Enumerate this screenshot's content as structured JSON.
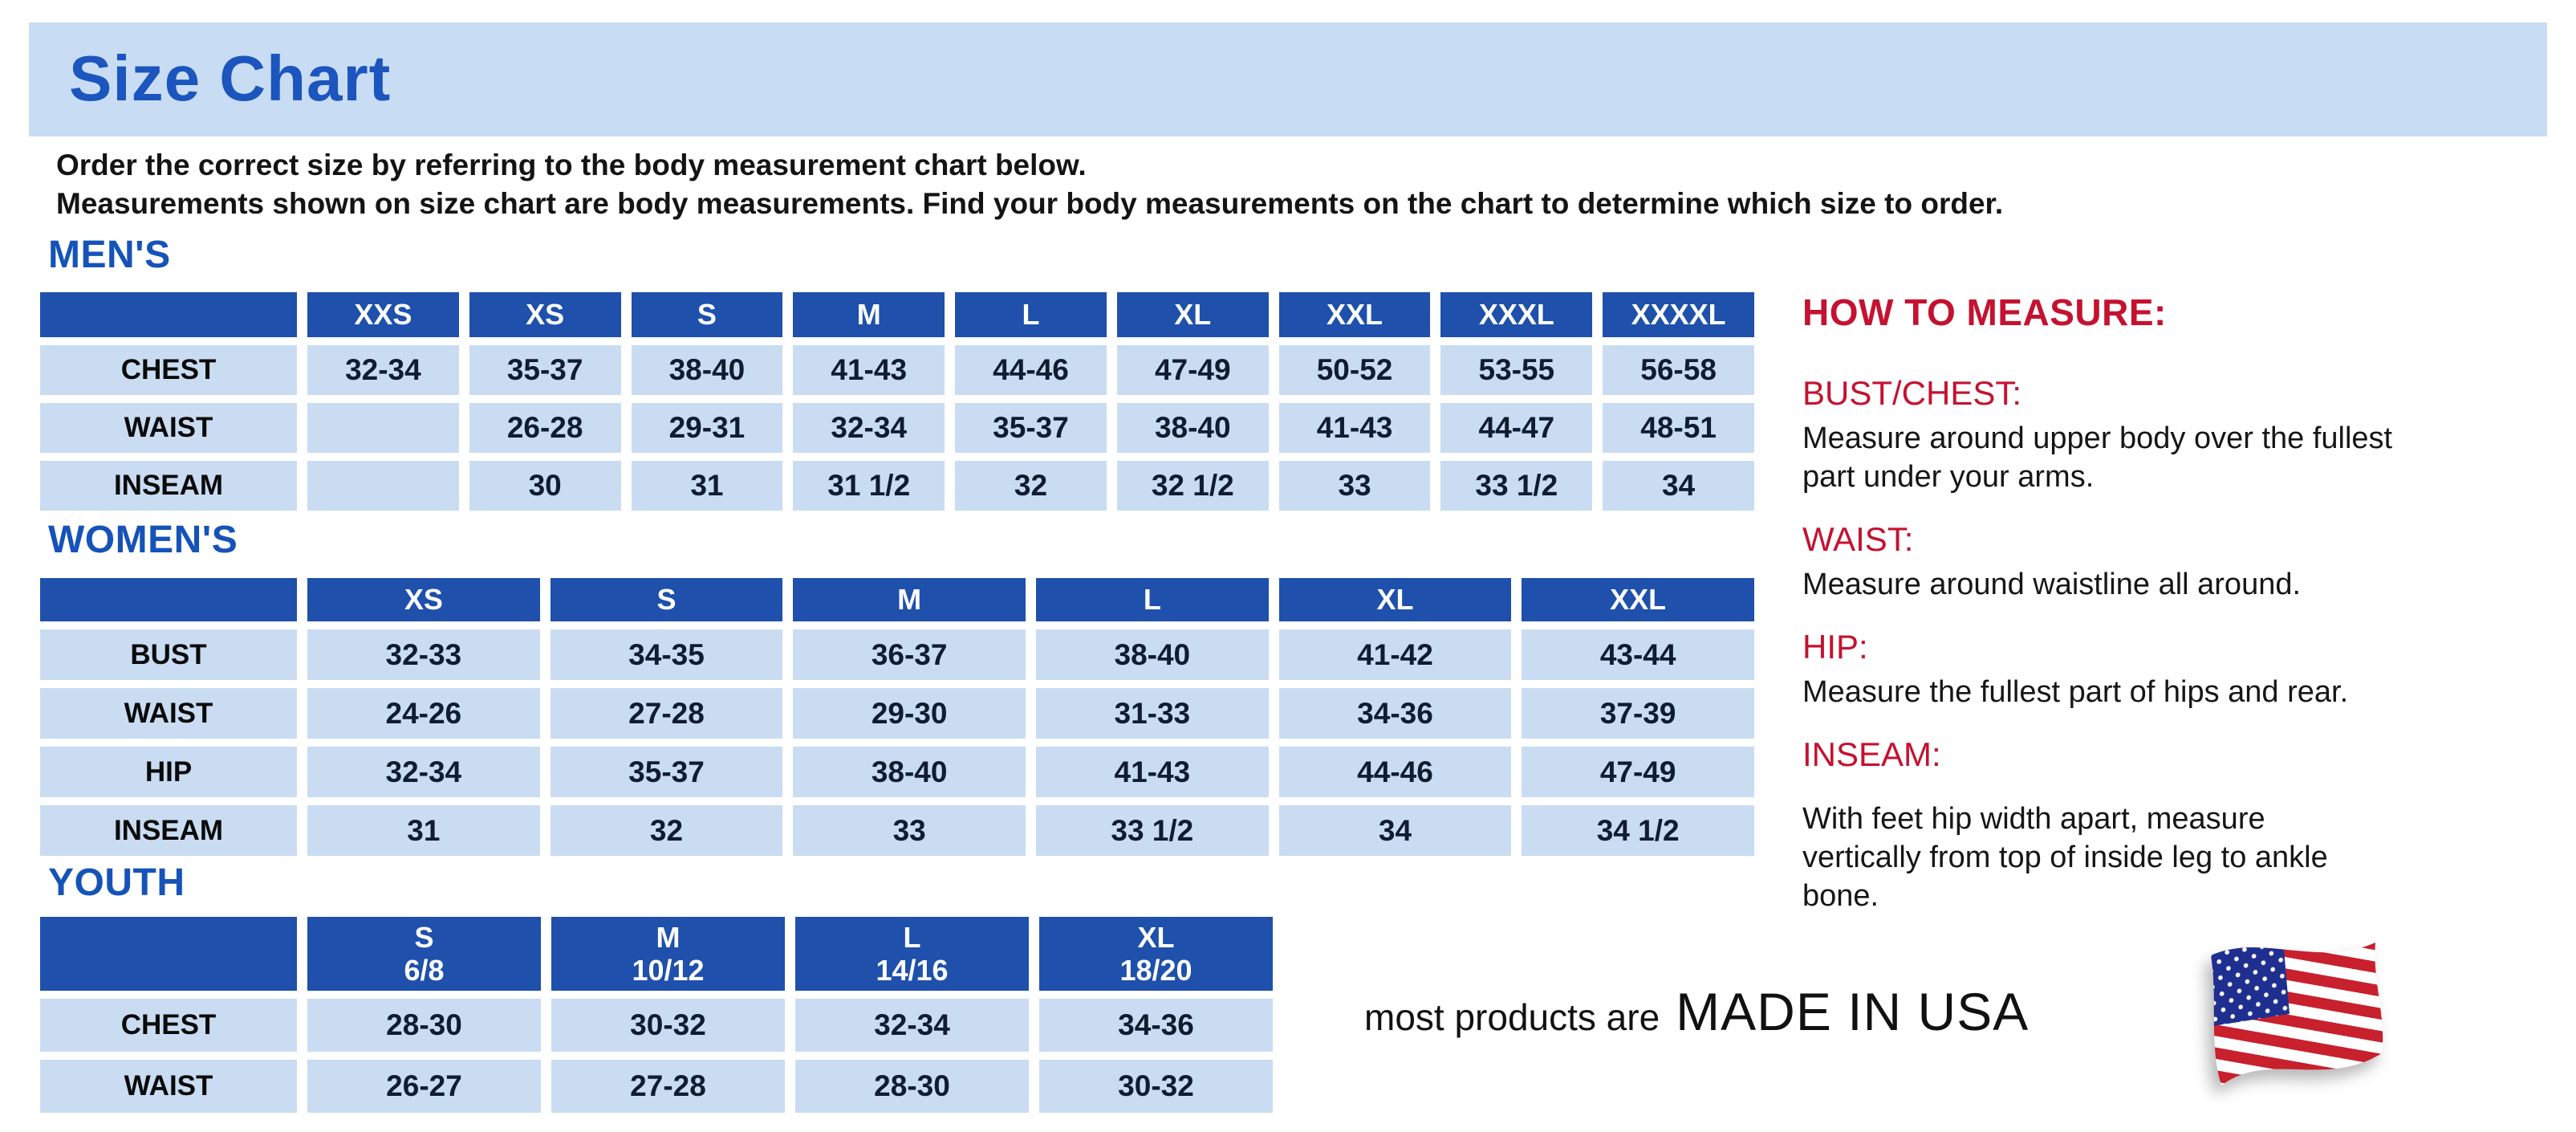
{
  "banner": {
    "title": "Size Chart"
  },
  "intro": {
    "line1": "Order the correct size by referring to the body measurement chart below.",
    "line2": "Measurements shown on size chart are body measurements.  Find your body measurements on the chart to determine which size to order."
  },
  "tables": {
    "mens": {
      "heading": "MEN'S",
      "sizes": [
        "XXS",
        "XS",
        "S",
        "M",
        "L",
        "XL",
        "XXL",
        "XXXL",
        "XXXXL"
      ],
      "rows": [
        {
          "label": "CHEST",
          "values": [
            "32-34",
            "35-37",
            "38-40",
            "41-43",
            "44-46",
            "47-49",
            "50-52",
            "53-55",
            "56-58"
          ]
        },
        {
          "label": "WAIST",
          "values": [
            "",
            "26-28",
            "29-31",
            "32-34",
            "35-37",
            "38-40",
            "41-43",
            "44-47",
            "48-51"
          ]
        },
        {
          "label": "INSEAM",
          "values": [
            "",
            "30",
            "31",
            "31 1/2",
            "32",
            "32 1/2",
            "33",
            "33 1/2",
            "34"
          ]
        }
      ]
    },
    "womens": {
      "heading": "WOMEN'S",
      "sizes": [
        "XS",
        "S",
        "M",
        "L",
        "XL",
        "XXL"
      ],
      "rows": [
        {
          "label": "BUST",
          "values": [
            "32-33",
            "34-35",
            "36-37",
            "38-40",
            "41-42",
            "43-44"
          ]
        },
        {
          "label": "WAIST",
          "values": [
            "24-26",
            "27-28",
            "29-30",
            "31-33",
            "34-36",
            "37-39"
          ]
        },
        {
          "label": "HIP",
          "values": [
            "32-34",
            "35-37",
            "38-40",
            "41-43",
            "44-46",
            "47-49"
          ]
        },
        {
          "label": "INSEAM",
          "values": [
            "31",
            "32",
            "33",
            "33 1/2",
            "34",
            "34 1/2"
          ]
        }
      ]
    },
    "youth": {
      "heading": "YOUTH",
      "sizes": [
        {
          "label": "S",
          "sub": "6/8"
        },
        {
          "label": "M",
          "sub": "10/12"
        },
        {
          "label": "L",
          "sub": "14/16"
        },
        {
          "label": "XL",
          "sub": "18/20"
        }
      ],
      "rows": [
        {
          "label": "CHEST",
          "values": [
            "28-30",
            "30-32",
            "32-34",
            "34-36"
          ]
        },
        {
          "label": "WAIST",
          "values": [
            "26-27",
            "27-28",
            "28-30",
            "30-32"
          ]
        }
      ]
    }
  },
  "how_to_measure": {
    "title": "HOW TO MEASURE:",
    "sections": [
      {
        "label": "BUST/CHEST:",
        "text": "Measure around upper body over the fullest part under your arms."
      },
      {
        "label": "WAIST:",
        "text": "Measure around waistline all around."
      },
      {
        "label": "HIP:",
        "text": "Measure the fullest part of hips and rear."
      },
      {
        "label": "INSEAM:",
        "text": "With feet hip width apart, measure vertically from top of inside leg to ankle bone."
      }
    ]
  },
  "footer": {
    "prefix": "most products are",
    "emphasis": "MADE IN USA",
    "icon": "us-flag-icon"
  },
  "colors": {
    "banner_bg": "#c8dcf4",
    "title_blue": "#1b55bd",
    "heading_blue": "#1553b8",
    "header_cell_blue": "#1e50ac",
    "cell_blue": "#c9dcf2",
    "accent_red": "#c41230",
    "value_text": "#101c30"
  }
}
